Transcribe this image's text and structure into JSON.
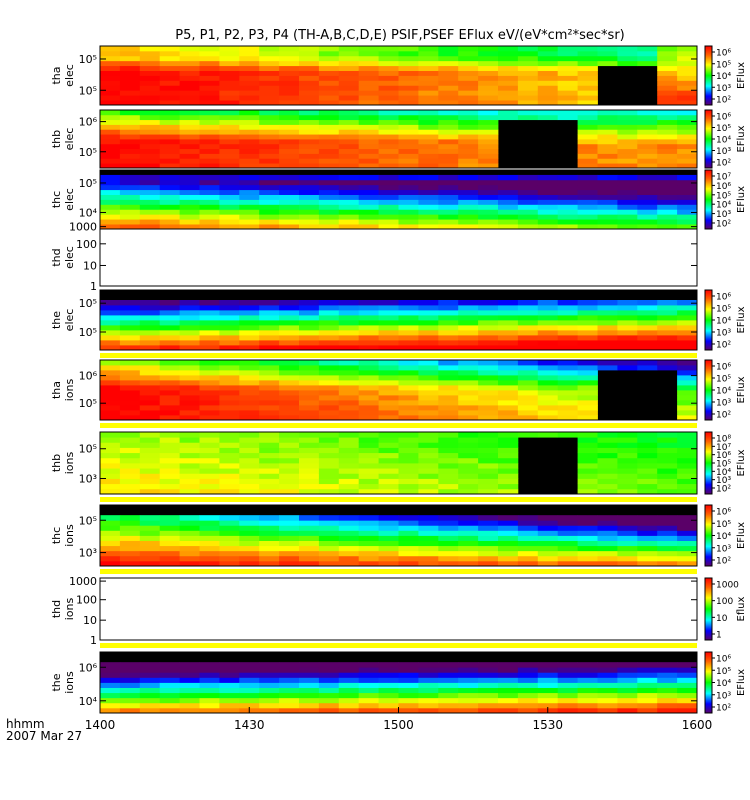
{
  "title": "P5, P1, P2, P3, P4 (TH-A,B,C,D,E) PSIF,PSEF EFlux eV/(eV*cm²*sec*sr)",
  "stamp": {
    "label": "hhmm",
    "date": "2007 Mar 27"
  },
  "colors": {
    "background": "#ffffff",
    "axis": "#000000",
    "separator": "#ffff00",
    "fill": "#ff0000"
  },
  "chart_data": {
    "type": "heatmap",
    "x_ticks": [
      "1400",
      "1430",
      "1500",
      "1530",
      "1600"
    ],
    "panels": [
      {
        "line1": "tha",
        "line2": "elec",
        "ticks": [
          "10⁵",
          "10⁵"
        ],
        "cbar_label": "EFlux",
        "cbar_ticks": [
          "10⁶",
          "10⁵",
          "10⁴",
          "10³",
          "10²"
        ]
      },
      {
        "line1": "thb",
        "line2": "elec",
        "ticks": [
          "10⁶",
          "10⁵"
        ],
        "cbar_label": "EFlux",
        "cbar_ticks": [
          "10⁶",
          "10⁵",
          "10⁴",
          "10³",
          "10²"
        ]
      },
      {
        "line1": "thc",
        "line2": "elec",
        "ticks": [
          "10⁵",
          "10⁴",
          "1000"
        ],
        "cbar_label": "EFlux",
        "cbar_ticks": [
          "10⁷",
          "10⁶",
          "10⁵",
          "10⁴",
          "10³",
          "10²"
        ]
      },
      {
        "line1": "thd",
        "line2": "elec",
        "ticks": [
          "100",
          "10",
          "1"
        ]
      },
      {
        "line1": "the",
        "line2": "elec",
        "ticks": [
          "10⁵",
          "10⁵"
        ],
        "cbar_label": "EFlux",
        "cbar_ticks": [
          "10⁶",
          "10⁵",
          "10⁴",
          "10³",
          "10²"
        ]
      },
      {
        "line1": "tha",
        "line2": "ions",
        "ticks": [
          "10⁶",
          "10⁵"
        ],
        "cbar_label": "EFlux",
        "cbar_ticks": [
          "10⁶",
          "10⁵",
          "10⁴",
          "10³",
          "10²"
        ]
      },
      {
        "line1": "thb",
        "line2": "ions",
        "ticks": [
          "10⁵",
          "10³"
        ],
        "cbar_label": "EFlux",
        "cbar_ticks": [
          "10⁸",
          "10⁷",
          "10⁶",
          "10⁵",
          "10⁴",
          "10³",
          "10²"
        ]
      },
      {
        "line1": "thc",
        "line2": "ions",
        "ticks": [
          "10⁵",
          "10³"
        ],
        "cbar_label": "EFlux",
        "cbar_ticks": [
          "10⁶",
          "10⁵",
          "10⁴",
          "10³",
          "10²"
        ]
      },
      {
        "line1": "thd",
        "line2": "ions",
        "ticks": [
          "1000",
          "100",
          "10",
          "1"
        ],
        "cbar_label": "Eflux",
        "cbar_ticks": [
          "1000",
          "100",
          "10",
          "1"
        ]
      },
      {
        "line1": "the",
        "line2": "ions",
        "ticks": [
          "10⁶",
          "10⁴"
        ],
        "cbar_label": "EFlux",
        "cbar_ticks": [
          "10⁶",
          "10⁵",
          "10⁴",
          "10³",
          "10²"
        ]
      }
    ]
  }
}
